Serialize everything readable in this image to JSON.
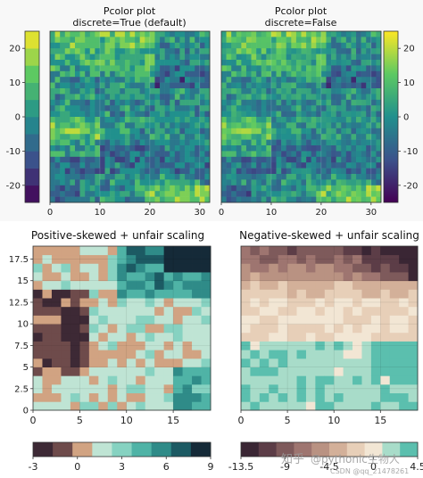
{
  "chart_data": [
    {
      "type": "heatmap",
      "title": "Pcolor plot",
      "subtitle": "discrete=True (default)",
      "x_ticks": [
        0,
        10,
        20,
        30
      ],
      "y_ticks": [
        20,
        10,
        0,
        -10,
        -20
      ],
      "xlim": [
        0,
        32
      ],
      "ylim": [
        -25,
        25
      ],
      "colorbar": {
        "placement": "left",
        "ticks": [
          20,
          10,
          0,
          -10,
          -20
        ],
        "range": [
          -25,
          25
        ],
        "discrete": true
      },
      "colormap": "viridis",
      "grid": true
    },
    {
      "type": "heatmap",
      "title": "Pcolor plot",
      "subtitle": "discrete=False",
      "x_ticks": [
        0,
        10,
        20,
        30
      ],
      "xlim": [
        0,
        32
      ],
      "ylim": [
        -25,
        25
      ],
      "colorbar": {
        "placement": "right",
        "ticks": [
          20,
          10,
          0,
          -10,
          -20
        ],
        "range": [
          -25,
          25
        ],
        "discrete": false
      },
      "colormap": "viridis",
      "grid": true
    },
    {
      "type": "heatmap",
      "title": "Positive-skewed + unfair scaling",
      "x_ticks": [
        0,
        5,
        10,
        15
      ],
      "y_ticks": [
        0,
        2.5,
        5,
        7.5,
        10,
        12.5,
        15,
        17.5
      ],
      "y_tick_labels": [
        "0",
        "2.5",
        "5",
        "7.5",
        "10",
        "12.5",
        "15",
        "17.5"
      ],
      "xlim": [
        0,
        19
      ],
      "ylim": [
        0,
        19
      ],
      "colorbar": {
        "placement": "bottom",
        "ticks": [
          -3,
          0,
          3,
          6,
          9
        ],
        "range": [
          -3,
          9
        ]
      },
      "levels": [
        -3,
        -1.5,
        0,
        1.5,
        3,
        4.5,
        6,
        7.5,
        9
      ],
      "colors": [
        "#3d2935",
        "#6e4b4b",
        "#d1a382",
        "#bfe4d4",
        "#86d2c1",
        "#4fb3a6",
        "#2f8b88",
        "#1c5a63",
        "#152a38"
      ],
      "grid": true
    },
    {
      "type": "heatmap",
      "title": "Negative-skewed + unfair scaling",
      "x_ticks": [
        0,
        5,
        10,
        15
      ],
      "xlim": [
        0,
        19
      ],
      "ylim": [
        0,
        19
      ],
      "colorbar": {
        "placement": "bottom",
        "ticks": [
          -13.5,
          -9,
          -4.5,
          0,
          4.5
        ],
        "range": [
          -13.5,
          4.5
        ]
      },
      "colors": [
        "#3a2634",
        "#5c3d47",
        "#7e5a5b",
        "#9e7570",
        "#b99282",
        "#d3b099",
        "#e7cfb8",
        "#f2e6d4",
        "#a8dcc9",
        "#5bbfae"
      ],
      "grid": true
    }
  ],
  "watermark": {
    "brand": "知乎",
    "handle": "@pythonic生物人",
    "csdn": "CSDN @qq_21478261"
  }
}
